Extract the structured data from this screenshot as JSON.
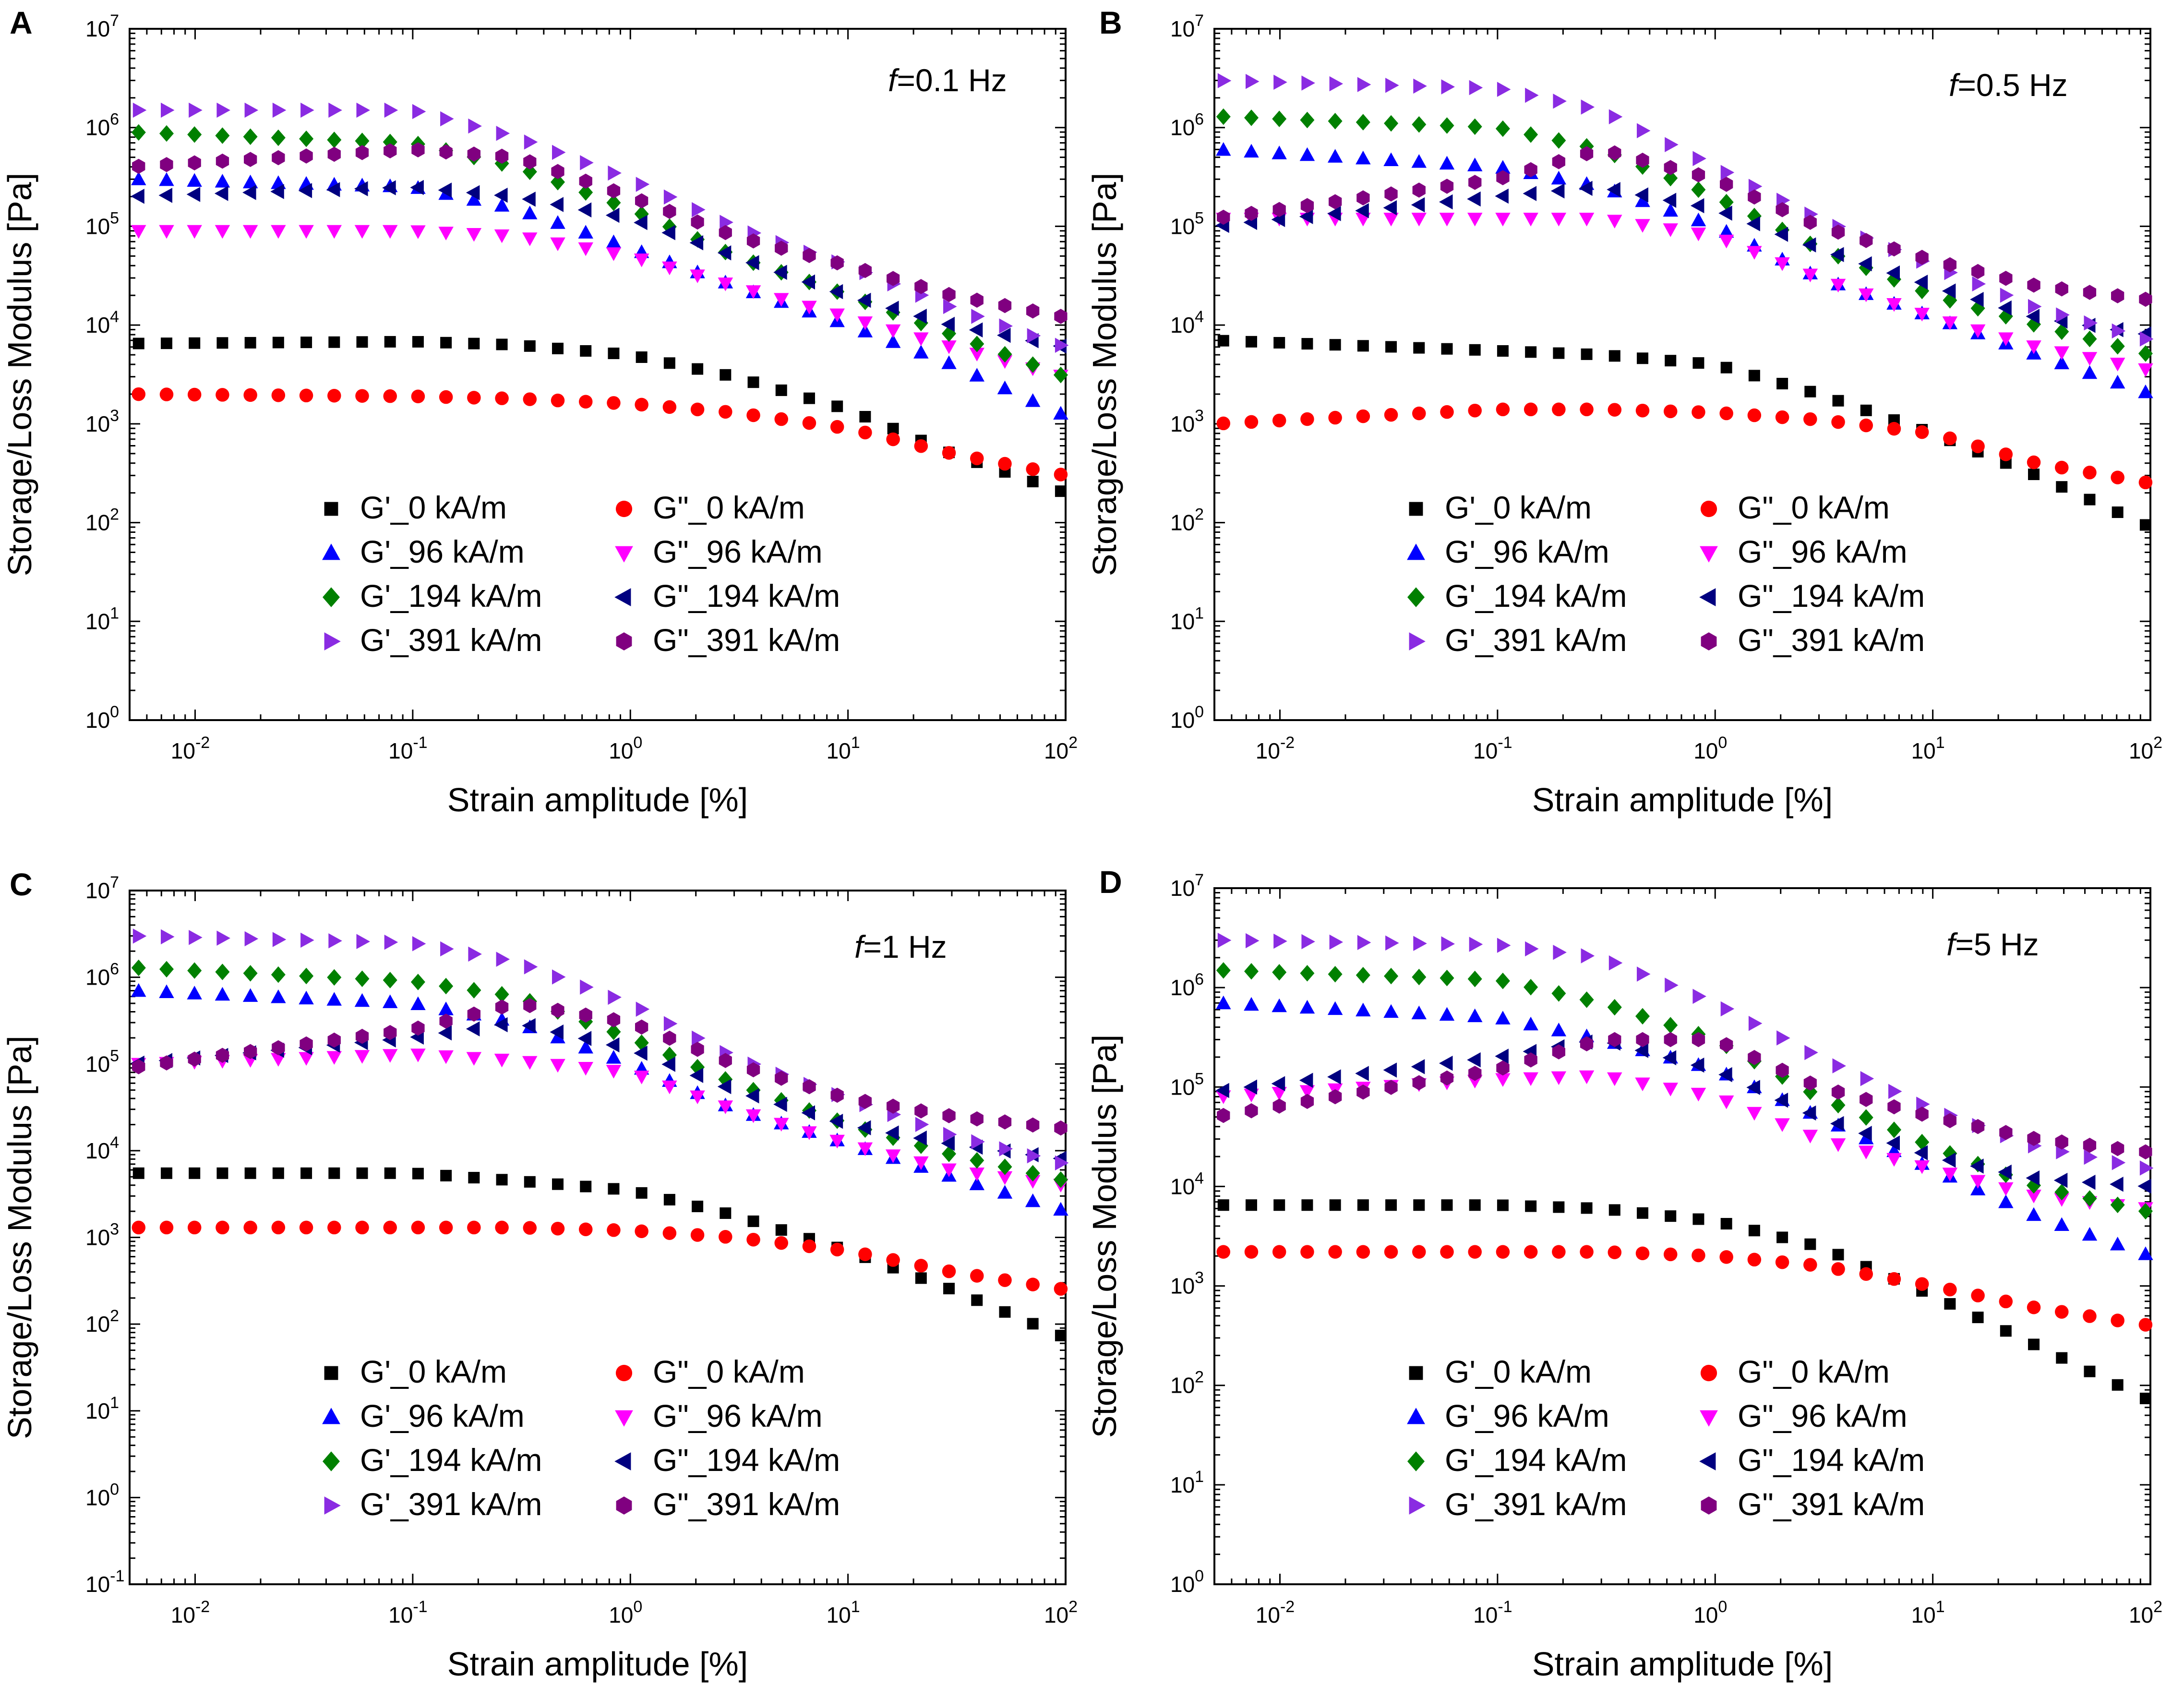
{
  "figure": {
    "xlabel": "Strain amplitude [%]",
    "ylabel": "Storage/Loss Modulus [Pa]",
    "x_tick_exponents": [
      "-2",
      "-1",
      "0",
      "1",
      "2"
    ],
    "legend": [
      "G'_0 kA/m",
      "G\"_0 kA/m",
      "G'_96 kA/m",
      "G\"_96 kA/m",
      "G'_194 kA/m",
      "G\"_194 kA/m",
      "G'_391 kA/m",
      "G\"_391 kA/m"
    ]
  },
  "series_styles": [
    {
      "name": "G'_0 kA/m",
      "marker": "square",
      "color": "#000000"
    },
    {
      "name": "G\"_0 kA/m",
      "marker": "circle",
      "color": "#ff0000"
    },
    {
      "name": "G'_96 kA/m",
      "marker": "tri-up",
      "color": "#0000ff"
    },
    {
      "name": "G\"_96 kA/m",
      "marker": "tri-down",
      "color": "#ff00ff"
    },
    {
      "name": "G'_194 kA/m",
      "marker": "diamond",
      "color": "#008000"
    },
    {
      "name": "G\"_194 kA/m",
      "marker": "tri-left",
      "color": "#000080"
    },
    {
      "name": "G'_391 kA/m",
      "marker": "tri-right",
      "color": "#8a2be2"
    },
    {
      "name": "G\"_391 kA/m",
      "marker": "hexagon",
      "color": "#800080"
    }
  ],
  "chart_data": [
    {
      "panel": "A",
      "type": "scatter",
      "freq_label": "=0.1 Hz",
      "xscale": "log",
      "yscale": "log",
      "xlim": [
        0.005,
        100
      ],
      "ylim": [
        1,
        10000000
      ],
      "y_tick_exponents": [
        "0",
        "1",
        "2",
        "3",
        "4",
        "5",
        "6",
        "7"
      ],
      "x": [
        0.005,
        0.1,
        0.3,
        1,
        3,
        10,
        30,
        100
      ],
      "series": [
        {
          "name": "G'_0 kA/m",
          "values": [
            6500,
            6800,
            6300,
            5000,
            3000,
            1400,
            500,
            200
          ]
        },
        {
          "name": "G\"_0 kA/m",
          "values": [
            2000,
            1900,
            1800,
            1600,
            1300,
            900,
            500,
            300
          ]
        },
        {
          "name": "G'_96 kA/m",
          "values": [
            300000,
            250000,
            150000,
            60000,
            25000,
            10000,
            4000,
            1200
          ]
        },
        {
          "name": "G\"_96 kA/m",
          "values": [
            90000,
            90000,
            80000,
            50000,
            25000,
            12000,
            6000,
            3000
          ]
        },
        {
          "name": "G'_194 kA/m",
          "values": [
            900000,
            700000,
            400000,
            150000,
            50000,
            20000,
            8000,
            3000
          ]
        },
        {
          "name": "G\"_194 kA/m",
          "values": [
            200000,
            250000,
            200000,
            120000,
            50000,
            20000,
            10000,
            6000
          ]
        },
        {
          "name": "G'_391 kA/m",
          "values": [
            1500000,
            1500000,
            800000,
            300000,
            100000,
            40000,
            15000,
            6000
          ]
        },
        {
          "name": "G\"_391 kA/m",
          "values": [
            400000,
            600000,
            500000,
            200000,
            80000,
            40000,
            20000,
            12000
          ]
        }
      ]
    },
    {
      "panel": "B",
      "type": "scatter",
      "freq_label": "=0.5 Hz",
      "xscale": "log",
      "yscale": "log",
      "xlim": [
        0.005,
        100
      ],
      "ylim": [
        1,
        10000000
      ],
      "y_tick_exponents": [
        "0",
        "1",
        "2",
        "3",
        "4",
        "5",
        "6",
        "7"
      ],
      "x": [
        0.005,
        0.1,
        0.3,
        1,
        3,
        10,
        30,
        100
      ],
      "series": [
        {
          "name": "G'_0 kA/m",
          "values": [
            7000,
            5500,
            5000,
            4000,
            2000,
            800,
            300,
            90
          ]
        },
        {
          "name": "G\"_0 kA/m",
          "values": [
            1000,
            1400,
            1400,
            1300,
            1100,
            800,
            400,
            250
          ]
        },
        {
          "name": "G'_96 kA/m",
          "values": [
            600000,
            400000,
            250000,
            100000,
            30000,
            12000,
            5000,
            2000
          ]
        },
        {
          "name": "G\"_96 kA/m",
          "values": [
            120000,
            120000,
            120000,
            80000,
            30000,
            12000,
            6000,
            3500
          ]
        },
        {
          "name": "G'_194 kA/m",
          "values": [
            1300000,
            1000000,
            600000,
            200000,
            60000,
            20000,
            10000,
            5000
          ]
        },
        {
          "name": "G\"_194 kA/m",
          "values": [
            100000,
            200000,
            250000,
            150000,
            60000,
            25000,
            12000,
            8000
          ]
        },
        {
          "name": "G'_391 kA/m",
          "values": [
            3000000,
            2500000,
            1500000,
            400000,
            120000,
            40000,
            15000,
            7000
          ]
        },
        {
          "name": "G\"_391 kA/m",
          "values": [
            120000,
            300000,
            600000,
            300000,
            100000,
            45000,
            25000,
            18000
          ]
        }
      ]
    },
    {
      "panel": "C",
      "type": "scatter",
      "freq_label": "=1 Hz",
      "xscale": "log",
      "yscale": "log",
      "xlim": [
        0.005,
        100
      ],
      "ylim": [
        0.1,
        10000000
      ],
      "y_tick_exponents": [
        "-1",
        "0",
        "1",
        "2",
        "3",
        "4",
        "5",
        "6",
        "7"
      ],
      "x": [
        0.005,
        0.1,
        0.3,
        1,
        3,
        10,
        30,
        100
      ],
      "series": [
        {
          "name": "G'_0 kA/m",
          "values": [
            5500,
            5500,
            4500,
            3500,
            1800,
            700,
            250,
            70
          ]
        },
        {
          "name": "G\"_0 kA/m",
          "values": [
            1300,
            1300,
            1300,
            1200,
            1000,
            700,
            400,
            250
          ]
        },
        {
          "name": "G'_96 kA/m",
          "values": [
            700000,
            500000,
            300000,
            100000,
            30000,
            12000,
            5000,
            2000
          ]
        },
        {
          "name": "G\"_96 kA/m",
          "values": [
            100000,
            130000,
            110000,
            80000,
            30000,
            12000,
            6000,
            4000
          ]
        },
        {
          "name": "G'_194 kA/m",
          "values": [
            1300000,
            900000,
            600000,
            200000,
            60000,
            20000,
            9000,
            4500
          ]
        },
        {
          "name": "G\"_194 kA/m",
          "values": [
            100000,
            200000,
            300000,
            150000,
            50000,
            20000,
            12000,
            8000
          ]
        },
        {
          "name": "G'_391 kA/m",
          "values": [
            3000000,
            2500000,
            1500000,
            500000,
            120000,
            40000,
            15000,
            7000
          ]
        },
        {
          "name": "G\"_391 kA/m",
          "values": [
            90000,
            250000,
            500000,
            300000,
            100000,
            40000,
            25000,
            18000
          ]
        }
      ]
    },
    {
      "panel": "D",
      "type": "scatter",
      "freq_label": "=5 Hz",
      "xscale": "log",
      "yscale": "log",
      "xlim": [
        0.005,
        100
      ],
      "ylim": [
        1,
        10000000
      ],
      "y_tick_exponents": [
        "0",
        "1",
        "2",
        "3",
        "4",
        "5",
        "6",
        "7"
      ],
      "x": [
        0.005,
        0.1,
        0.3,
        1,
        3,
        10,
        30,
        100
      ],
      "series": [
        {
          "name": "G'_0 kA/m",
          "values": [
            6500,
            6500,
            6000,
            4500,
            2500,
            800,
            250,
            70
          ]
        },
        {
          "name": "G\"_0 kA/m",
          "values": [
            2200,
            2200,
            2200,
            2000,
            1600,
            1000,
            600,
            400
          ]
        },
        {
          "name": "G'_96 kA/m",
          "values": [
            700000,
            500000,
            300000,
            150000,
            50000,
            15000,
            5000,
            2000
          ]
        },
        {
          "name": "G\"_96 kA/m",
          "values": [
            80000,
            120000,
            130000,
            80000,
            30000,
            15000,
            8000,
            6000
          ]
        },
        {
          "name": "G'_194 kA/m",
          "values": [
            1500000,
            1200000,
            700000,
            300000,
            80000,
            25000,
            10000,
            5500
          ]
        },
        {
          "name": "G\"_194 kA/m",
          "values": [
            90000,
            200000,
            300000,
            150000,
            50000,
            20000,
            12000,
            10000
          ]
        },
        {
          "name": "G'_391 kA/m",
          "values": [
            3000000,
            2700000,
            2000000,
            700000,
            200000,
            60000,
            25000,
            15000
          ]
        },
        {
          "name": "G\"_391 kA/m",
          "values": [
            50000,
            150000,
            300000,
            300000,
            100000,
            50000,
            30000,
            22000
          ]
        }
      ]
    }
  ]
}
